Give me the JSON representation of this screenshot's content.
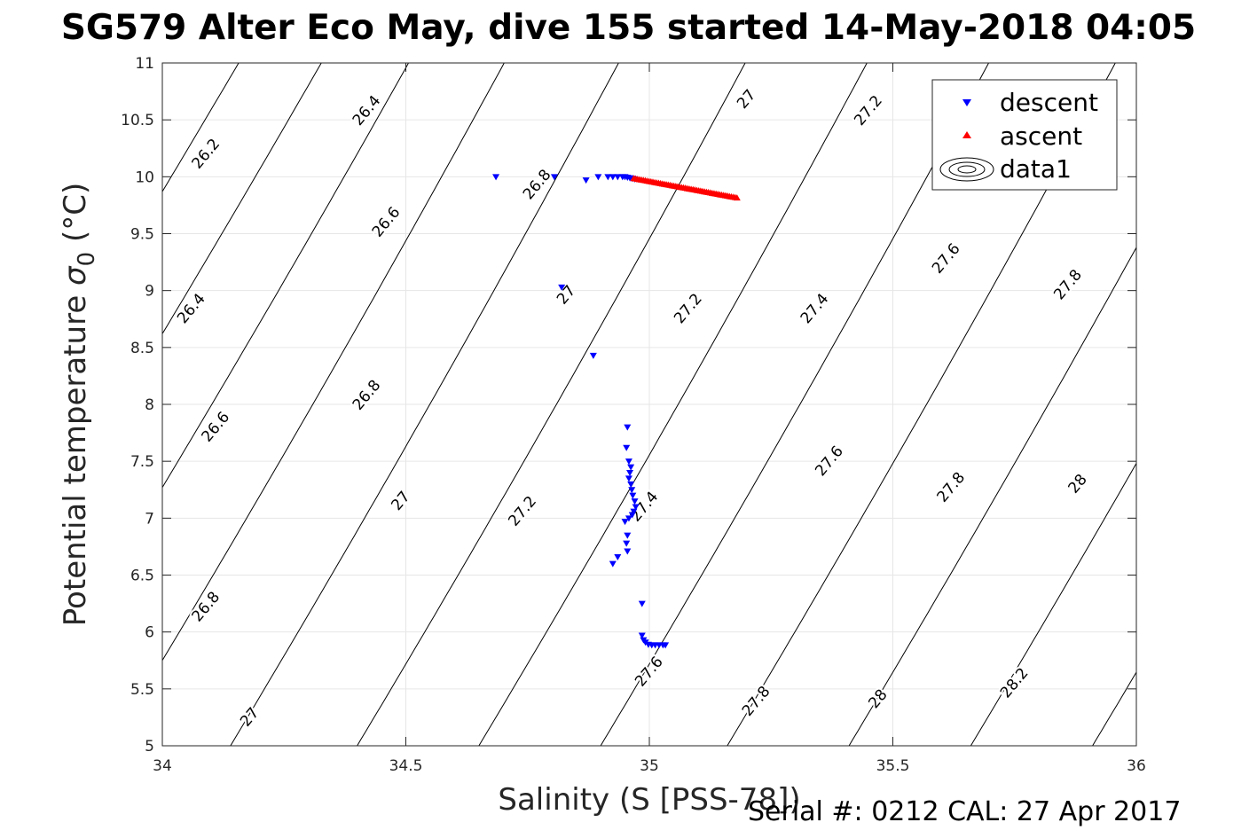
{
  "chart_data": {
    "type": "scatter",
    "title": "SG579 Alter Eco May, dive 155 started 14-May-2018 04:05",
    "xlabel": "Salinity (S [PSS-78])",
    "ylabel_main": "Potential temperature ",
    "ylabel_sigma": "σ",
    "ylabel_sub": "0",
    "ylabel_unit": " (°C)",
    "xlim": [
      34,
      36
    ],
    "ylim": [
      5,
      11
    ],
    "xticks": [
      34,
      34.5,
      35,
      35.5,
      36
    ],
    "xtick_labels": [
      "34",
      "34.5",
      "35",
      "35.5",
      "36"
    ],
    "yticks": [
      5,
      5.5,
      6,
      6.5,
      7,
      7.5,
      8,
      8.5,
      9,
      9.5,
      10,
      10.5,
      11
    ],
    "ytick_labels": [
      "5",
      "5.5",
      "6",
      "6.5",
      "7",
      "7.5",
      "8",
      "8.5",
      "9",
      "9.5",
      "10",
      "10.5",
      "11"
    ],
    "grid": true,
    "legend_position": "top-right",
    "series": [
      {
        "name": "descent",
        "marker": "triangle-down",
        "color": "#0000ff",
        "points": [
          [
            34.685,
            10.0
          ],
          [
            34.805,
            10.0
          ],
          [
            34.87,
            9.97
          ],
          [
            34.895,
            10.0
          ],
          [
            34.915,
            10.0
          ],
          [
            34.925,
            10.0
          ],
          [
            34.935,
            10.0
          ],
          [
            34.945,
            10.0
          ],
          [
            34.95,
            10.0
          ],
          [
            34.955,
            9.995
          ],
          [
            34.96,
            9.99
          ],
          [
            34.965,
            9.985
          ],
          [
            34.97,
            9.98
          ],
          [
            34.82,
            9.03
          ],
          [
            34.885,
            8.43
          ],
          [
            34.955,
            7.8
          ],
          [
            34.953,
            7.62
          ],
          [
            34.958,
            7.5
          ],
          [
            34.962,
            7.45
          ],
          [
            34.96,
            7.4
          ],
          [
            34.958,
            7.35
          ],
          [
            34.962,
            7.3
          ],
          [
            34.964,
            7.25
          ],
          [
            34.966,
            7.2
          ],
          [
            34.97,
            7.15
          ],
          [
            34.972,
            7.1
          ],
          [
            34.968,
            7.06
          ],
          [
            34.965,
            7.03
          ],
          [
            34.958,
            7.0
          ],
          [
            34.95,
            6.97
          ],
          [
            34.955,
            6.85
          ],
          [
            34.953,
            6.78
          ],
          [
            34.955,
            6.71
          ],
          [
            34.935,
            6.66
          ],
          [
            34.925,
            6.6
          ],
          [
            34.985,
            6.25
          ],
          [
            34.985,
            5.97
          ],
          [
            34.988,
            5.93
          ],
          [
            34.992,
            5.91
          ],
          [
            34.998,
            5.89
          ],
          [
            35.005,
            5.885
          ],
          [
            35.012,
            5.885
          ],
          [
            35.02,
            5.885
          ],
          [
            35.028,
            5.885
          ],
          [
            35.033,
            5.885
          ]
        ]
      },
      {
        "name": "ascent",
        "marker": "triangle-up",
        "color": "#ff0000",
        "from": [
          34.968,
          9.985
        ],
        "to": [
          35.18,
          9.815
        ],
        "n": 55
      }
    ],
    "contour_series": {
      "name": "data1",
      "color": "#000000",
      "levels": [
        {
          "value": 26.2,
          "anchor": [
            34.0,
            9.87
          ]
        },
        {
          "value": 26.4,
          "anchor": [
            34.0,
            8.62
          ]
        },
        {
          "value": 26.6,
          "anchor": [
            34.0,
            7.27
          ]
        },
        {
          "value": 26.8,
          "anchor": [
            34.0,
            5.75
          ]
        },
        {
          "value": 27.0,
          "anchor": [
            34.14,
            5.0
          ]
        },
        {
          "value": 27.2,
          "anchor": [
            34.4,
            5.0
          ]
        },
        {
          "value": 27.4,
          "anchor": [
            34.65,
            5.0
          ]
        },
        {
          "value": 27.6,
          "anchor": [
            34.9,
            5.0
          ]
        },
        {
          "value": 27.8,
          "anchor": [
            35.16,
            5.0
          ]
        },
        {
          "value": 28.0,
          "anchor": [
            35.41,
            5.0
          ]
        },
        {
          "value": 28.2,
          "anchor": [
            35.66,
            5.0
          ]
        },
        {
          "value": 28.4,
          "anchor": [
            35.91,
            5.0
          ]
        }
      ],
      "labels": [
        {
          "text": "26.2",
          "x": 34.09,
          "y": 10.2
        },
        {
          "text": "26.4",
          "x": 34.42,
          "y": 10.58
        },
        {
          "text": "26.8",
          "x": 34.77,
          "y": 9.93
        },
        {
          "text": "27",
          "x": 35.2,
          "y": 10.68
        },
        {
          "text": "27.2",
          "x": 35.45,
          "y": 10.58
        },
        {
          "text": "26.6",
          "x": 34.46,
          "y": 9.6
        },
        {
          "text": "26.4",
          "x": 34.06,
          "y": 8.84
        },
        {
          "text": "27",
          "x": 34.83,
          "y": 8.96
        },
        {
          "text": "27.2",
          "x": 35.08,
          "y": 8.84
        },
        {
          "text": "27.4",
          "x": 35.34,
          "y": 8.84
        },
        {
          "text": "27.6",
          "x": 35.61,
          "y": 9.28
        },
        {
          "text": "27.8",
          "x": 35.86,
          "y": 9.05
        },
        {
          "text": "26.8",
          "x": 34.42,
          "y": 8.08
        },
        {
          "text": "26.6",
          "x": 34.11,
          "y": 7.8
        },
        {
          "text": "27.6",
          "x": 35.37,
          "y": 7.5
        },
        {
          "text": "27",
          "x": 34.49,
          "y": 7.15
        },
        {
          "text": "27.2",
          "x": 34.74,
          "y": 7.06
        },
        {
          "text": "27.4",
          "x": 34.99,
          "y": 7.1
        },
        {
          "text": "27.8",
          "x": 35.62,
          "y": 7.27
        },
        {
          "text": "28",
          "x": 35.88,
          "y": 7.3
        },
        {
          "text": "26.8",
          "x": 34.09,
          "y": 6.22
        },
        {
          "text": "27.6",
          "x": 35.0,
          "y": 5.65
        },
        {
          "text": "27",
          "x": 34.18,
          "y": 5.25
        },
        {
          "text": "27.8",
          "x": 35.22,
          "y": 5.39
        },
        {
          "text": "28",
          "x": 35.47,
          "y": 5.41
        },
        {
          "text": "28.2",
          "x": 35.75,
          "y": 5.55
        }
      ]
    }
  },
  "footer": {
    "serial_text": "Serial #: 0212  CAL: 27 Apr 2017"
  }
}
